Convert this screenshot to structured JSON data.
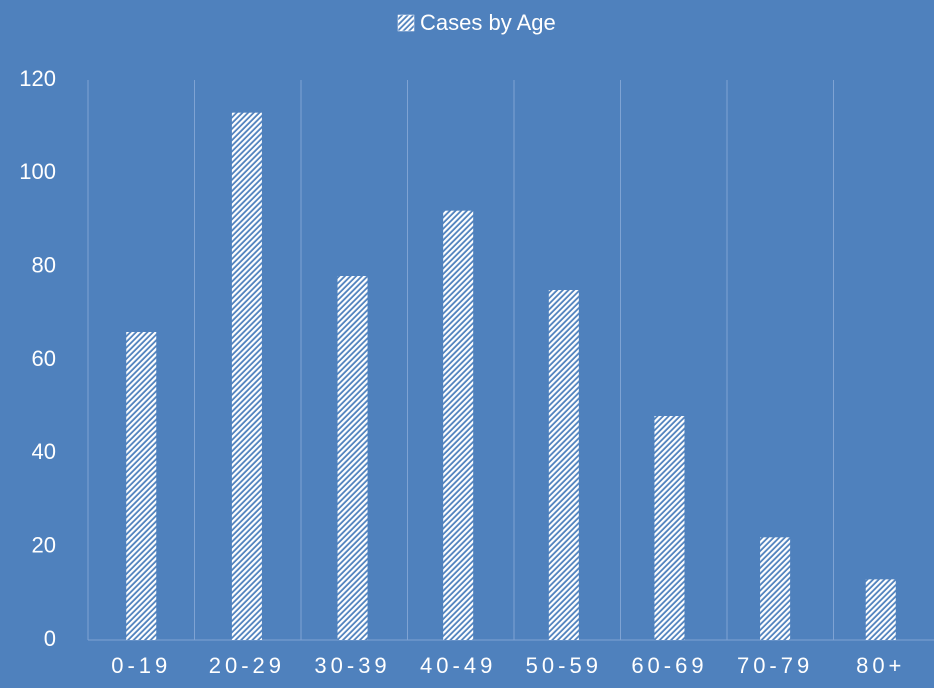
{
  "chart_data": {
    "type": "bar",
    "categories": [
      "0-19",
      "20-29",
      "30-39",
      "40-49",
      "50-59",
      "60-69",
      "70-79",
      "80+"
    ],
    "series": [
      {
        "name": "Cases by Age",
        "color": "#ffffff",
        "values": [
          66,
          113,
          78,
          92,
          75,
          48,
          22,
          13
        ]
      }
    ],
    "ylim": [
      0,
      120
    ],
    "yticks": [
      0,
      20,
      40,
      60,
      80,
      100,
      120
    ],
    "legend": "top",
    "background": "#4f81bd"
  }
}
